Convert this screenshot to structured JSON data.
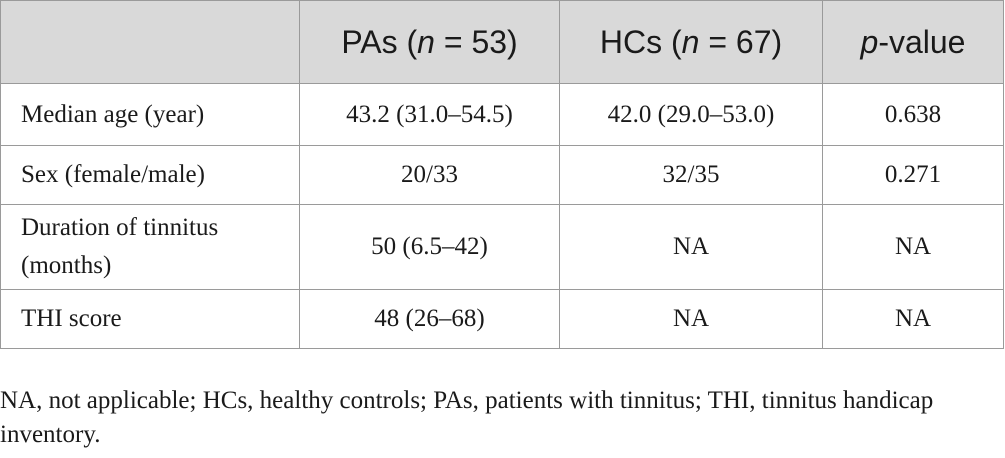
{
  "table": {
    "header": {
      "col1": "",
      "col2": {
        "prefix": "PAs (",
        "n_symbol": "n",
        "suffix": " = 53)"
      },
      "col3": {
        "prefix": "HCs (",
        "n_symbol": "n",
        "suffix": " = 67)"
      },
      "col4": {
        "p_symbol": "p",
        "suffix": "-value"
      }
    },
    "rows": [
      {
        "label": "Median age (year)",
        "pas": "43.2 (31.0–54.5)",
        "hcs": "42.0 (29.0–53.0)",
        "p": "0.638"
      },
      {
        "label": "Sex (female/male)",
        "pas": "20/33",
        "hcs": "32/35",
        "p": "0.271"
      },
      {
        "label_line1": "Duration of tinnitus",
        "label_line2": "(months)",
        "pas": "50 (6.5–42)",
        "hcs": "NA",
        "p": "NA"
      },
      {
        "label": "THI score",
        "pas": "48 (26–68)",
        "hcs": "NA",
        "p": "NA"
      }
    ]
  },
  "footnote": "NA, not applicable; HCs, healthy controls; PAs, patients with tinnitus; THI, tinnitus handicap inventory."
}
